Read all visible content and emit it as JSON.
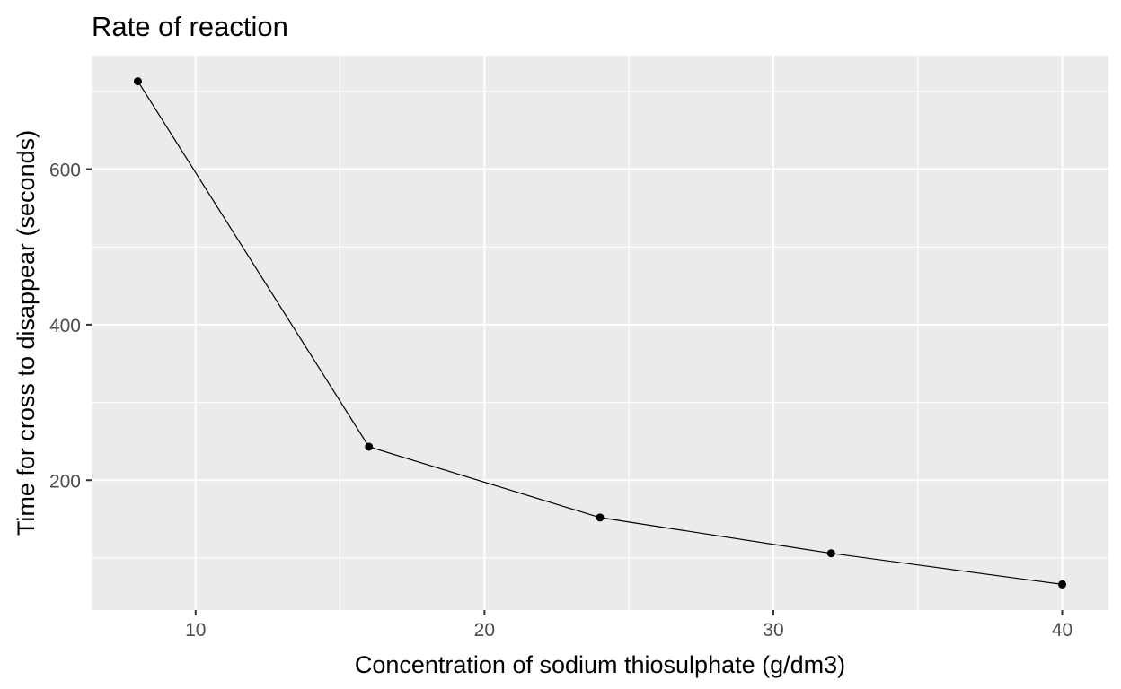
{
  "chart_data": {
    "type": "line",
    "title": "Rate of reaction",
    "xlabel": "Concentration of sodium thiosulphate (g/dm3)",
    "ylabel": "Time for cross to disappear (seconds)",
    "x": [
      8,
      16,
      24,
      32,
      40
    ],
    "series": [
      {
        "values": [
          713,
          243,
          152,
          106,
          66
        ]
      }
    ],
    "xlim": [
      6.4,
      41.6
    ],
    "ylim": [
      33,
      746
    ],
    "x_ticks": [
      10,
      20,
      30,
      40
    ],
    "x_tick_labels": [
      "10",
      "20",
      "30",
      "40"
    ],
    "y_ticks": [
      200,
      400,
      600
    ],
    "y_tick_labels": [
      "200",
      "400",
      "600"
    ],
    "grid": true,
    "legend": "none",
    "colors": {
      "panel": "#ebebeb",
      "grid": "#ffffff",
      "line": "#000000",
      "point": "#000000",
      "tick_text": "#4d4d4d"
    }
  }
}
